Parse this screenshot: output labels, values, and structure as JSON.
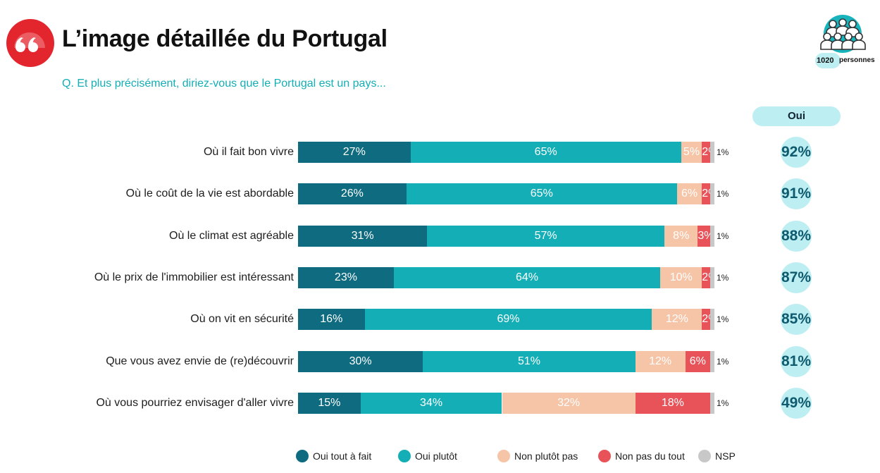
{
  "header": {
    "title": "L’image détaillée du Portugal",
    "question": "Q. Et plus précisément, diriez-vous que le Portugal est un pays...",
    "sample_count": "1020",
    "sample_unit": "personnes",
    "total_header": "Oui"
  },
  "colors": {
    "accent": "#e3262e",
    "oui_tout_a_fait": "#0e6b80",
    "oui_plutot": "#13aeb6",
    "non_plutot_pas": "#f6c4a6",
    "non_pas_du_tout": "#e8535a",
    "nsp": "#c8c8c8",
    "total_bubble": "#bdeef1"
  },
  "chart_data": {
    "type": "bar",
    "orientation": "horizontal",
    "stacked": true,
    "categories": [
      "Où il fait bon vivre",
      "Où le coût de la vie est abordable",
      "Où le climat est agréable",
      "Où le prix de l'immobilier est intéressant",
      "Où on vit en sécurité",
      "Que vous avez envie de (re)découvrir",
      "Où vous pourriez envisager d'aller vivre"
    ],
    "series": [
      {
        "name": "Oui tout à fait",
        "color": "#0e6b80",
        "values": [
          27,
          26,
          31,
          23,
          16,
          30,
          15
        ],
        "labels": [
          "27%",
          "26%",
          "31%",
          "23%",
          "16%",
          "30%",
          "15%"
        ]
      },
      {
        "name": "Oui plutôt",
        "color": "#13aeb6",
        "values": [
          65,
          65,
          57,
          64,
          69,
          51,
          34
        ],
        "labels": [
          "65%",
          "65%",
          "57%",
          "64%",
          "69%",
          "51%",
          "34%"
        ]
      },
      {
        "name": "Non plutôt pas",
        "color": "#f6c4a6",
        "values": [
          5,
          6,
          8,
          10,
          12,
          12,
          32
        ],
        "labels": [
          "5%",
          "6%",
          "8%",
          "10%",
          "12%",
          "12%",
          "32%"
        ]
      },
      {
        "name": "Non pas du tout",
        "color": "#e8535a",
        "values": [
          2,
          2,
          3,
          2,
          2,
          6,
          18
        ],
        "labels": [
          "2%",
          "2%",
          "3%",
          "2%",
          "2%",
          "6%",
          "18%"
        ]
      },
      {
        "name": "NSP",
        "color": "#c8c8c8",
        "values": [
          1,
          1,
          1,
          1,
          1,
          1,
          1
        ],
        "labels": [
          "1%",
          "1%",
          "1%",
          "1%",
          "1%",
          "1%",
          "1%"
        ]
      }
    ],
    "totals_oui": [
      "92%",
      "91%",
      "88%",
      "87%",
      "85%",
      "81%",
      "49%"
    ],
    "legend": [
      "Oui tout à fait",
      "Oui plutôt",
      "Non plutôt pas",
      "Non pas du tout",
      "NSP"
    ],
    "legend_position": "bottom",
    "grid": false
  }
}
